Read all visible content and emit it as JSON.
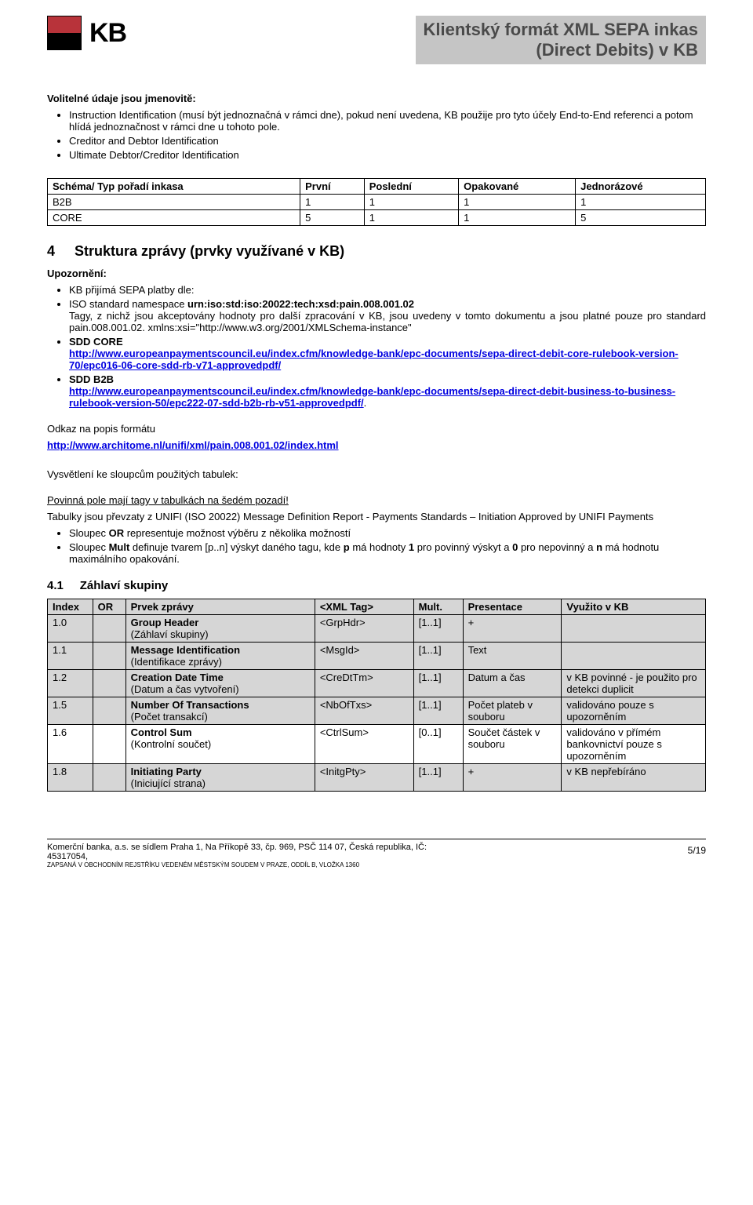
{
  "logo": {
    "text": "KB"
  },
  "title": {
    "line1": "Klientský formát XML SEPA inkas",
    "line2": "(Direct Debits) v KB"
  },
  "intro": {
    "h": "Volitelné údaje jsou jmenovitě:",
    "b1": "Instruction Identification (musí být jednoznačná v rámci dne), pokud není uvedena, KB použije pro tyto účely End-to-End referenci a potom hlídá jednoznačnost v rámci dne u tohoto pole.",
    "b2": "Creditor and Debtor Identification",
    "b3": "Ultimate Debtor/Creditor Identification"
  },
  "table1": {
    "headers": [
      "Schéma/ Typ pořadí inkasa",
      "První",
      "Poslední",
      "Opakované",
      "Jednorázové"
    ],
    "rows": [
      [
        "B2B",
        "1",
        "1",
        "1",
        "1"
      ],
      [
        "CORE",
        "5",
        "1",
        "1",
        "5"
      ]
    ]
  },
  "section4": {
    "num": "4",
    "title": "Struktura zprávy (prvky využívané v KB)",
    "upoz": "Upozornění:",
    "accept": "KB přijímá SEPA platby dle:",
    "iso_prefix": "ISO standard namespace ",
    "iso_bold": "urn:iso:std:iso:20022:tech:xsd:pain.008.001.02",
    "iso_tail": "Tagy, z nichž jsou akceptovány hodnoty pro další zpracování v KB, jsou uvedeny v tomto dokumentu a jsou platné pouze pro standard pain.008.001.02. xmlns:xsi=\"http://www.w3.org/2001/XMLSchema-instance\"",
    "sdd_core": "SDD CORE",
    "sdd_core_link": "http://www.europeanpaymentscouncil.eu/index.cfm/knowledge-bank/epc-documents/sepa-direct-debit-core-rulebook-version-70/epc016-06-core-sdd-rb-v71-approvedpdf/",
    "sdd_b2b": "SDD B2B",
    "sdd_b2b_link": "http://www.europeanpaymentscouncil.eu/index.cfm/knowledge-bank/epc-documents/sepa-direct-debit-business-to-business-rulebook-version-50/epc222-07-sdd-b2b-rb-v51-approvedpdf/",
    "odkaz": "Odkaz na popis formátu",
    "odkaz_link": "http://www.architome.nl/unifi/xml/pain.008.001.02/index.html",
    "vysvetleni": "Vysvětlení ke sloupcům použitých tabulek:",
    "povinna": "Povinná pole mají tagy v tabulkách na šedém pozadí!",
    "tabulky": "Tabulky jsou převzaty z UNIFI (ISO 20022) Message Definition Report - Payments Standards – Initiation Approved by UNIFI Payments",
    "or_pre": "Sloupec ",
    "or_bold": "OR",
    "or_post": " representuje možnost výběru z několika možností",
    "mult_pre": "Sloupec ",
    "mult_bold": "Mult",
    "mult_mid1": " definuje tvarem [p..n] výskyt daného tagu, kde ",
    "mult_p": "p",
    "mult_mid2": " má hodnoty ",
    "mult_one": "1",
    "mult_mid3": " pro povinný výskyt a ",
    "mult_zero": "0",
    "mult_mid4": " pro nepovinný a ",
    "mult_n": "n",
    "mult_end": " má hodnotu maximálního opakování."
  },
  "section41": {
    "num": "4.1",
    "title": "Záhlaví skupiny",
    "headers": [
      "Index",
      "OR",
      "Prvek zprávy",
      "<XML Tag>",
      "Mult.",
      "Presentace",
      "Využito v KB"
    ],
    "rows": [
      {
        "idx": "1.0",
        "or": "",
        "prvek_b": "Group Header",
        "prvek_n": "(Záhlaví skupiny)",
        "tag": "<GrpHdr>",
        "mult": "[1..1]",
        "pres": "+",
        "vyuz": "",
        "grey": true
      },
      {
        "idx": "1.1",
        "or": "",
        "prvek_b": "Message Identification",
        "prvek_n": "(Identifikace zprávy)",
        "tag": "<MsgId>",
        "mult": "[1..1]",
        "pres": "Text",
        "vyuz": "",
        "grey": true
      },
      {
        "idx": "1.2",
        "or": "",
        "prvek_b": "Creation Date Time",
        "prvek_n": "(Datum a čas vytvoření)",
        "tag": "<CreDtTm>",
        "mult": "[1..1]",
        "pres": "Datum a čas",
        "vyuz": "v KB povinné - je použito pro detekci duplicit",
        "grey": true
      },
      {
        "idx": "1.5",
        "or": "",
        "prvek_b": "Number Of Transactions",
        "prvek_n": "(Počet transakcí)",
        "tag": "<NbOfTxs>",
        "mult": "[1..1]",
        "pres": "Počet plateb v souboru",
        "vyuz": "validováno pouze s upozorněním",
        "grey": true
      },
      {
        "idx": "1.6",
        "or": "",
        "prvek_b": "Control Sum",
        "prvek_n": "(Kontrolní součet)",
        "tag": "<CtrlSum>",
        "mult": "[0..1]",
        "pres": "Součet částek v souboru",
        "vyuz": "validováno v přímém bankovnictví pouze s upozorněním",
        "grey": false
      },
      {
        "idx": "1.8",
        "or": "",
        "prvek_b": "Initiating Party",
        "prvek_n": "(Iniciující strana)",
        "tag": "<InitgPty>",
        "mult": "[1..1]",
        "pres": "+",
        "vyuz": "v KB nepřebíráno",
        "grey": true
      }
    ],
    "colwidths": [
      "55",
      "40",
      "230",
      "120",
      "60",
      "120",
      "175"
    ]
  },
  "footer": {
    "line1": "Komerční banka, a.s. se sídlem Praha 1, Na Příkopě 33, čp. 969, PSČ 114 07, Česká republika, IČ:",
    "line2": "45317054,",
    "tiny": "ZAPSANÁ V OBCHODNÍM REJSTŘÍKU VEDENÉM MĚSTSKÝM SOUDEM V PRAZE, ODDÍL B, VLOŽKA 1360",
    "page": "5/19"
  }
}
